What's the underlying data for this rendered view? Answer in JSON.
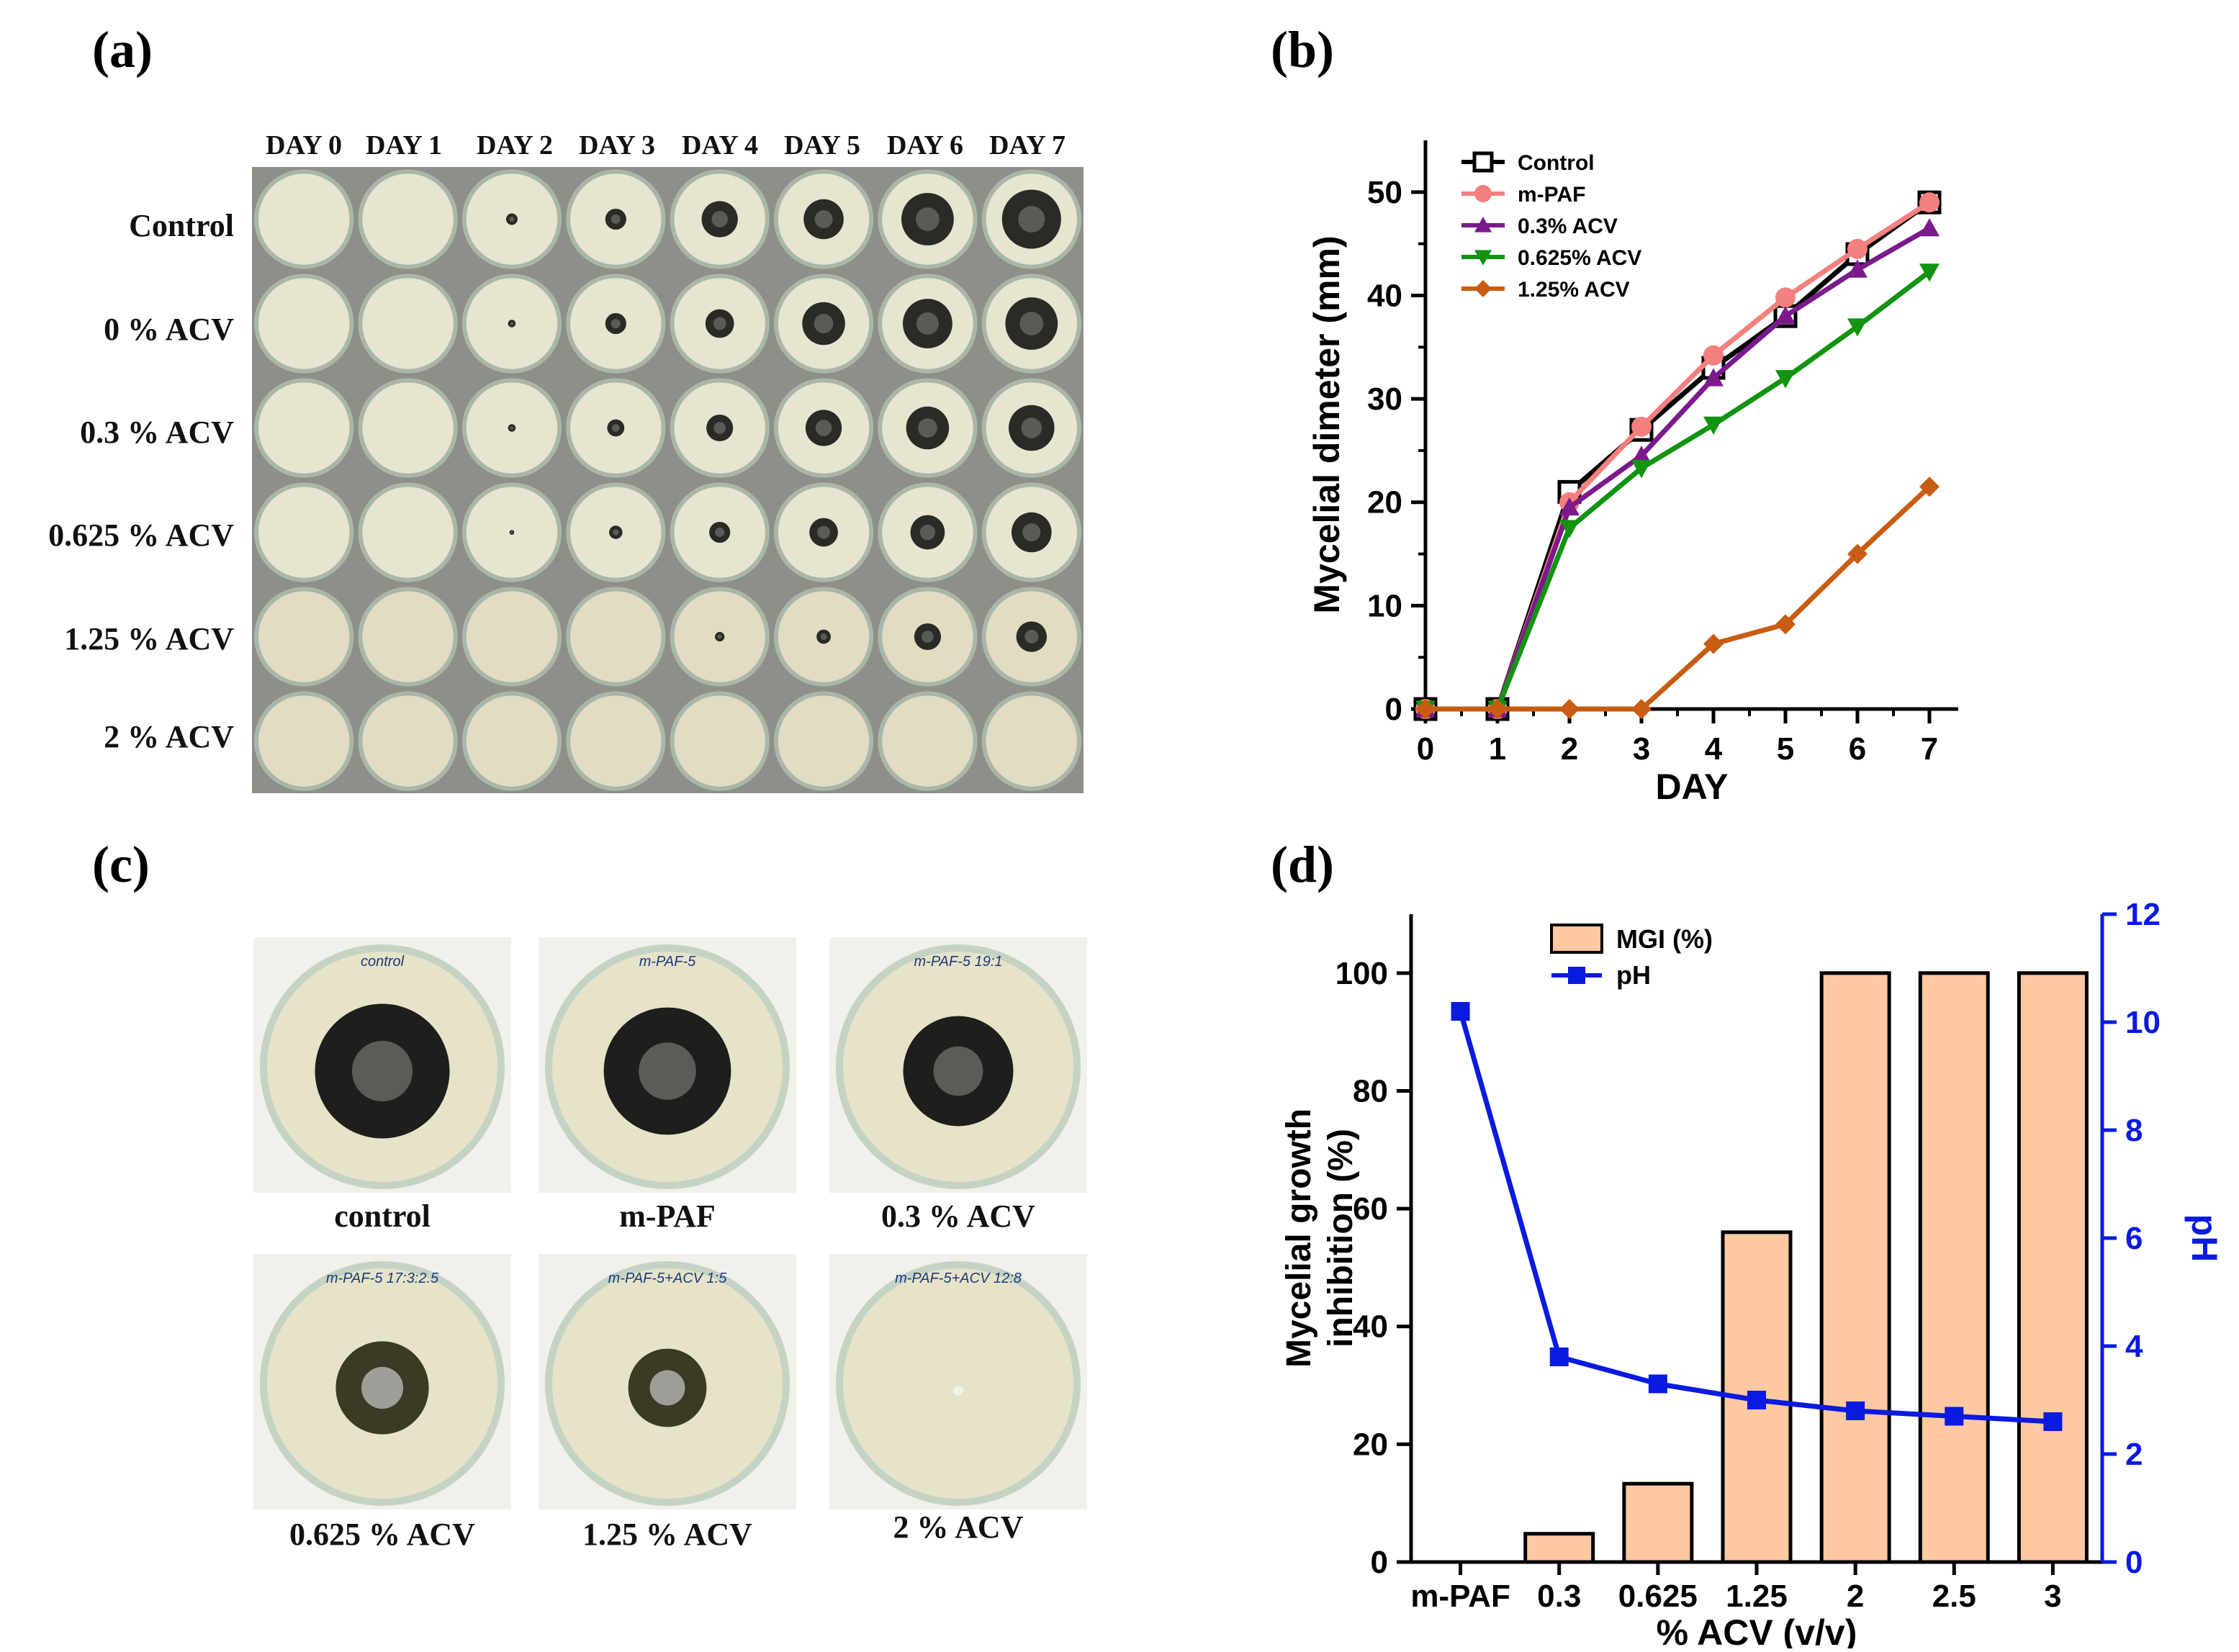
{
  "panel_labels": {
    "a": "(a)",
    "b": "(b)",
    "c": "(c)",
    "d": "(d)"
  },
  "panel_a": {
    "days": [
      "DAY 0",
      "DAY 1",
      "DAY 2",
      "DAY 3",
      "DAY 4",
      "DAY 5",
      "DAY 6",
      "DAY 7"
    ],
    "rows": [
      "Control",
      "0 % ACV",
      "0.3 % ACV",
      "0.625 % ACV",
      "1.25 % ACV",
      "2 % ACV"
    ]
  },
  "panel_c": {
    "captions": [
      "control",
      "m-PAF",
      "0.3 % ACV",
      "0.625 % ACV",
      "1.25 % ACV",
      "2 % ACV"
    ],
    "plate_labels": [
      "control",
      "m-PAF-5",
      "m-PAF-5 19:1",
      "m-PAF-5 17:3:2.5",
      "m-PAF-5+ACV 1:5",
      "m-PAF-5+ACV 12:8"
    ]
  },
  "colors": {
    "control": "#000000",
    "mpaf": "#f37f7f",
    "acv03": "#7b1a8c",
    "acv0625": "#129312",
    "acv125": "#c85c12",
    "bar_fill": "#fec8a0",
    "ph_line": "#0a1ae0"
  },
  "chart_data": [
    {
      "type": "line",
      "title": "",
      "xlabel": "DAY",
      "ylabel": "Mycelial dimeter (mm)",
      "x": [
        0,
        1,
        2,
        3,
        4,
        5,
        6,
        7
      ],
      "xlim": [
        0,
        7.4
      ],
      "ylim": [
        0,
        55
      ],
      "xticks": [
        "0",
        "1",
        "2",
        "3",
        "4",
        "5",
        "6",
        "7"
      ],
      "yticks": [
        "0",
        "10",
        "20",
        "30",
        "40",
        "50"
      ],
      "legend_position": "top-left",
      "series": [
        {
          "name": "Control",
          "marker": "open-square",
          "color": "#000000",
          "values": [
            0,
            0,
            21,
            27,
            33,
            38,
            44,
            49
          ]
        },
        {
          "name": "m-PAF",
          "marker": "circle",
          "color": "#f37f7f",
          "values": [
            0,
            0,
            20,
            27.3,
            34.2,
            39.8,
            44.5,
            49
          ]
        },
        {
          "name": "0.3% ACV",
          "marker": "triangle-up",
          "color": "#7b1a8c",
          "values": [
            0,
            0,
            19.5,
            24.5,
            32,
            38,
            42.5,
            46.5
          ]
        },
        {
          "name": "0.625% ACV",
          "marker": "triangle-down",
          "color": "#129312",
          "values": [
            0,
            0,
            17.5,
            23.3,
            27.5,
            32,
            37,
            42.3
          ]
        },
        {
          "name": "1.25% ACV",
          "marker": "diamond",
          "color": "#c85c12",
          "values": [
            0,
            0,
            0,
            0,
            6.3,
            8.2,
            15,
            21.5
          ]
        }
      ]
    },
    {
      "type": "bar",
      "title": "",
      "xlabel": "% ACV (v/v)",
      "ylabel": "Mycelial growth inhibition (%)",
      "y2label": "pH",
      "categories": [
        "m-PAF",
        "0.3",
        "0.625",
        "1.25",
        "2",
        "2.5",
        "3"
      ],
      "ylim": [
        0,
        110
      ],
      "y2lim": [
        0,
        12
      ],
      "yticks": [
        "0",
        "20",
        "40",
        "60",
        "80",
        "100"
      ],
      "y2ticks": [
        "0",
        "2",
        "4",
        "6",
        "8",
        "10",
        "12"
      ],
      "legend_position": "top-left",
      "series": [
        {
          "name": "MGI (%)",
          "type": "bar",
          "axis": "left",
          "color": "#fec8a0",
          "values": [
            0,
            4.8,
            13.3,
            56,
            100,
            100,
            100
          ]
        },
        {
          "name": "pH",
          "type": "line",
          "axis": "right",
          "marker": "square",
          "color": "#0a1ae0",
          "values": [
            10.2,
            3.8,
            3.3,
            3.0,
            2.8,
            2.7,
            2.6
          ]
        }
      ]
    }
  ]
}
